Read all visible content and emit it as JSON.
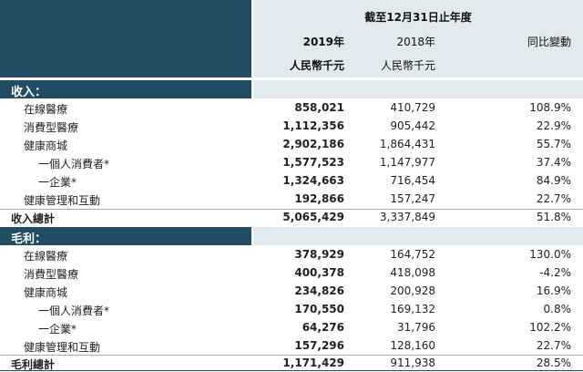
{
  "header": {
    "period": "截至12月31日止年度",
    "col_2019": "2019年",
    "col_2018": "2018年",
    "col_change": "同比變動",
    "unit_2019": "人民幣千元",
    "unit_2018": "人民幣千元"
  },
  "revenue": {
    "title": "收入：",
    "rows": [
      {
        "label": "在線醫療",
        "v2019": "858,021",
        "v2018": "410,729",
        "change": "108.9%"
      },
      {
        "label": "消費型醫療",
        "v2019": "1,112,356",
        "v2018": "905,442",
        "change": "22.9%"
      },
      {
        "label": "健康商城",
        "v2019": "2,902,186",
        "v2018": "1,864,431",
        "change": "55.7%"
      },
      {
        "label": "一個人消費者*",
        "v2019": "1,577,523",
        "v2018": "1,147,977",
        "change": "37.4%"
      },
      {
        "label": "一企業*",
        "v2019": "1,324,663",
        "v2018": "716,454",
        "change": "84.9%"
      },
      {
        "label": "健康管理和互動",
        "v2019": "192,866",
        "v2018": "157,247",
        "change": "22.7%"
      }
    ],
    "total": {
      "label": "收入總計",
      "v2019": "5,065,429",
      "v2018": "3,337,849",
      "change": "51.8%"
    }
  },
  "gross_profit": {
    "title": "毛利：",
    "rows": [
      {
        "label": "在線醫療",
        "v2019": "378,929",
        "v2018": "164,752",
        "change": "130.0%"
      },
      {
        "label": "消費型醫療",
        "v2019": "400,378",
        "v2018": "418,098",
        "change": "-4.2%"
      },
      {
        "label": "健康商城",
        "v2019": "234,826",
        "v2018": "200,928",
        "change": "16.9%"
      },
      {
        "label": "一個人消費者*",
        "v2019": "170,550",
        "v2018": "169,132",
        "change": "0.8%"
      },
      {
        "label": "一企業*",
        "v2019": "64,276",
        "v2018": "31,796",
        "change": "102.2%"
      },
      {
        "label": "健康管理和互動",
        "v2019": "157,296",
        "v2018": "128,160",
        "change": "22.7%"
      }
    ],
    "total": {
      "label": "毛利總計",
      "v2019": "1,171,429",
      "v2018": "911,938",
      "change": "28.5%"
    }
  }
}
